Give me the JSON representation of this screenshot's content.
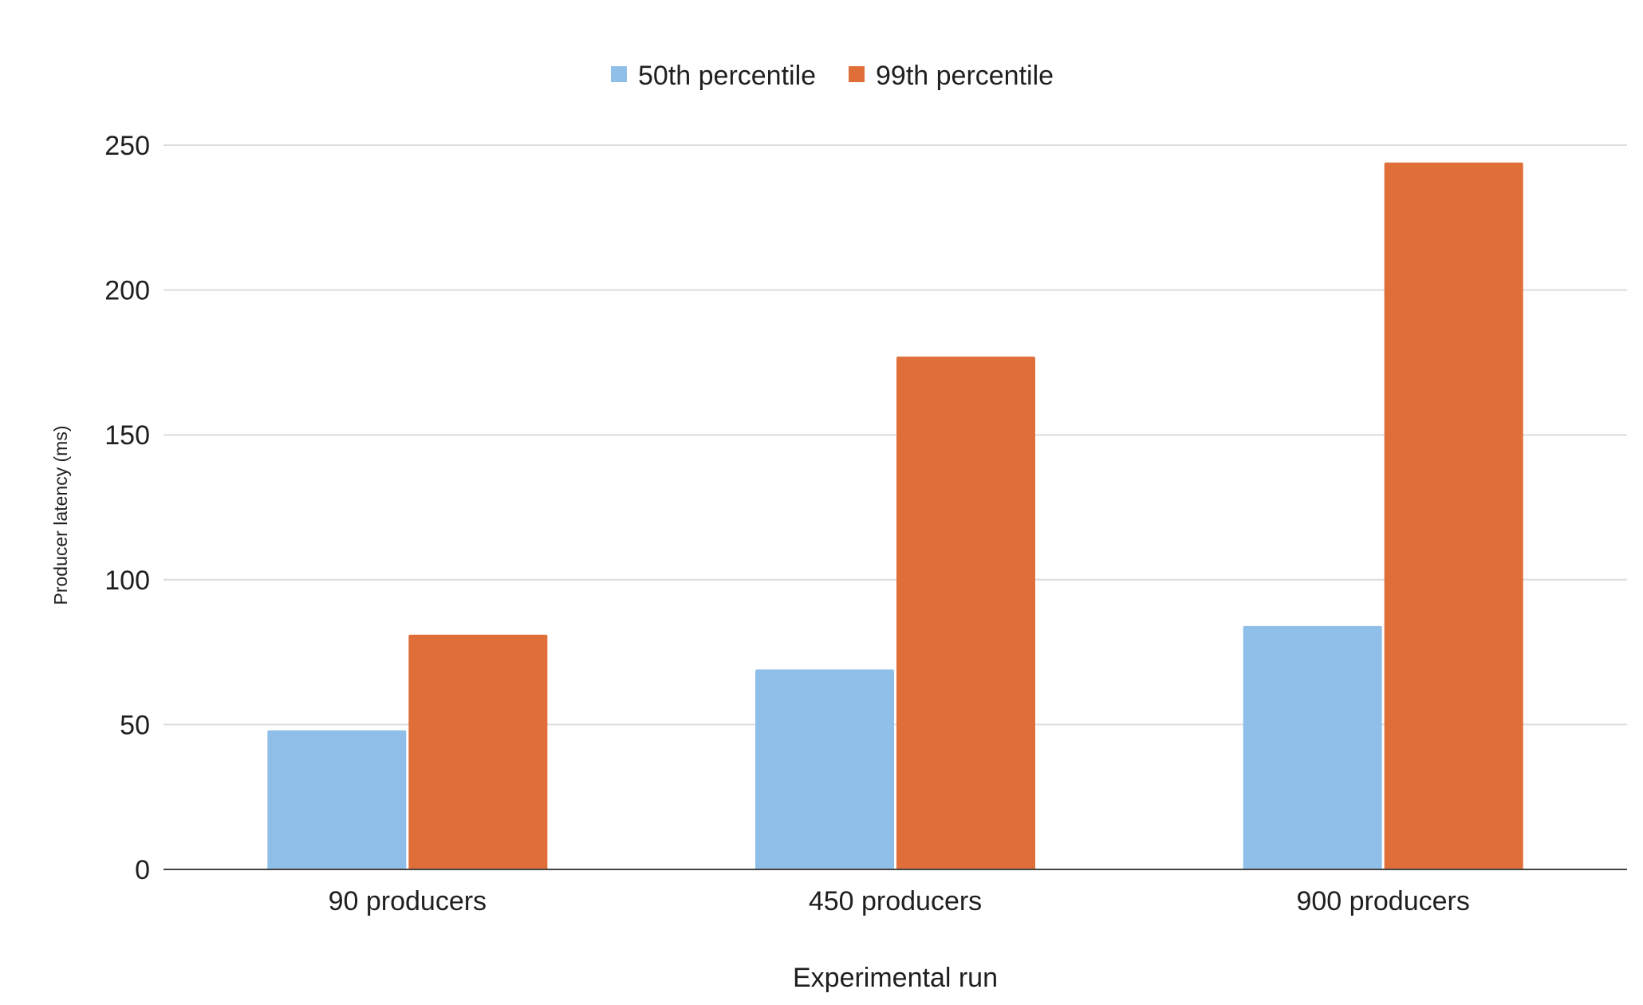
{
  "chart_data": {
    "type": "bar",
    "categories": [
      "90 producers",
      "450 producers",
      "900 producers"
    ],
    "series": [
      {
        "name": "50th percentile",
        "color": "#8fbee8",
        "values": [
          48,
          69,
          84
        ]
      },
      {
        "name": "99th percentile",
        "color": "#e06e38",
        "values": [
          81,
          177,
          244
        ]
      }
    ],
    "xlabel": "Experimental run",
    "ylabel": "Producer latency (ms)",
    "ylim": [
      0,
      250
    ],
    "yticks": [
      "0",
      "50",
      "100",
      "150",
      "200",
      "250"
    ],
    "grid": true,
    "legend_position": "top-center"
  }
}
